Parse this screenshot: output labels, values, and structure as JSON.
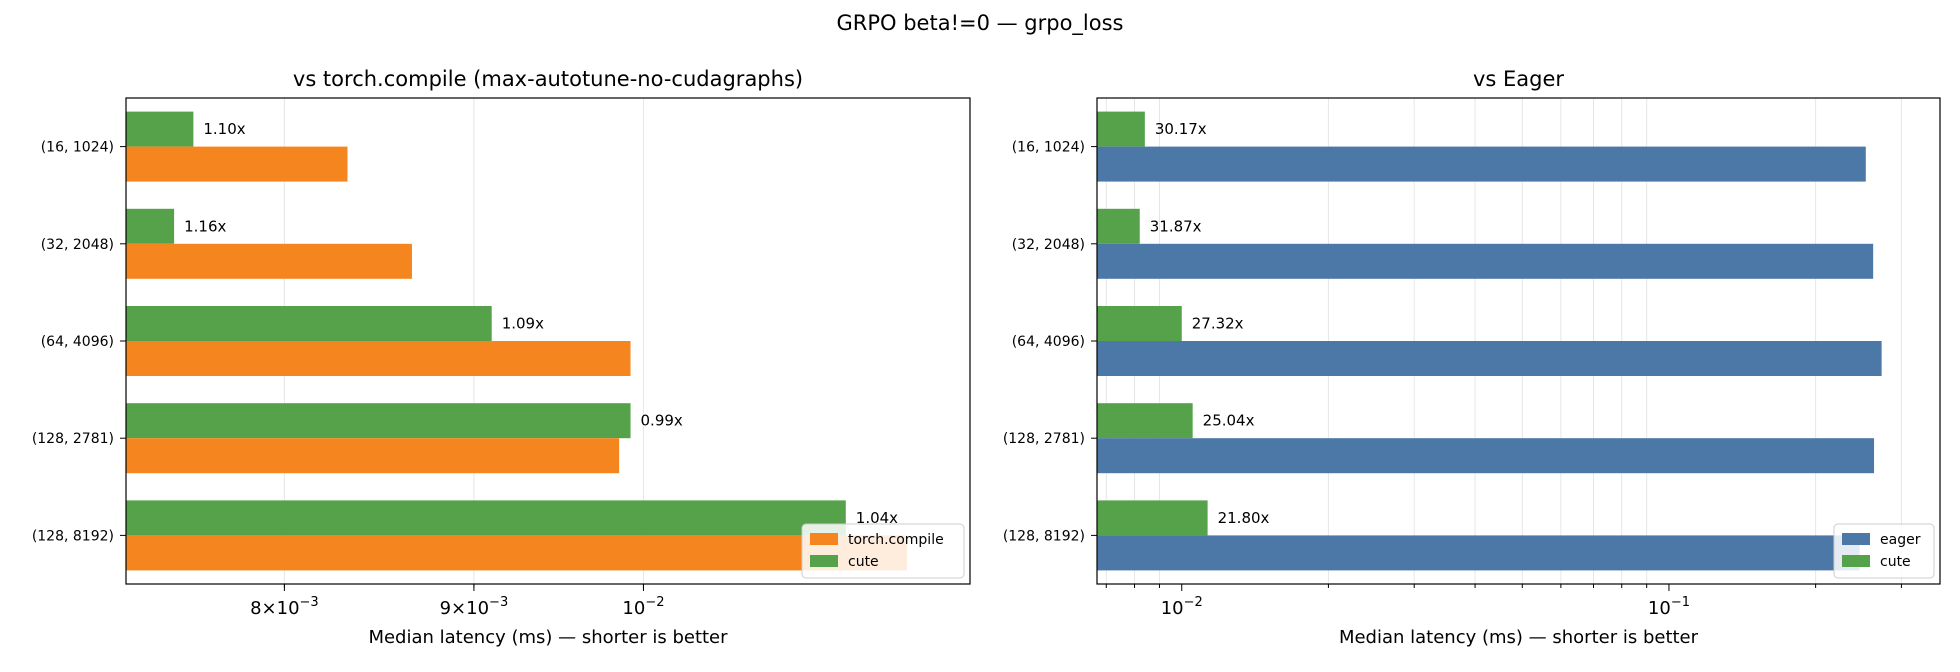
{
  "title": "GRPO beta!=0 — grpo_loss",
  "chart_data": [
    {
      "type": "bar",
      "orientation": "horizontal",
      "title": "vs torch.compile (max-autotune-no-cudagraphs)",
      "xlabel": "Median latency (ms) — shorter is better",
      "xscale": "log",
      "xlim": [
        0.00725,
        0.01225
      ],
      "xticks": [
        {
          "value": 0.008,
          "base": "8",
          "mult": "×10",
          "exp": "−3"
        },
        {
          "value": 0.009,
          "base": "9",
          "mult": "×10",
          "exp": "−3"
        },
        {
          "value": 0.01,
          "base": "10",
          "mult": "",
          "exp": "−2"
        }
      ],
      "minor_grid": [
        0.008,
        0.009,
        0.01
      ],
      "categories": [
        "(16, 1024)",
        "(32, 2048)",
        "(64, 4096)",
        "(128, 2781)",
        "(128, 8192)"
      ],
      "series": [
        {
          "name": "torch.compile",
          "color": "#f5861f",
          "values": [
            0.00832,
            0.00866,
            0.00992,
            0.00985,
            0.01178
          ]
        },
        {
          "name": "cute",
          "color": "#55a24a",
          "values": [
            0.00756,
            0.00747,
            0.0091,
            0.00992,
            0.01134
          ]
        }
      ],
      "bar_labels": [
        "1.10x",
        "1.16x",
        "1.09x",
        "0.99x",
        "1.04x"
      ],
      "legend_loc": "lower-right",
      "grid": true
    },
    {
      "type": "bar",
      "orientation": "horizontal",
      "title": "vs Eager",
      "xlabel": "Median latency (ms) — shorter is better",
      "xscale": "log",
      "xlim": [
        0.0067,
        0.36
      ],
      "xticks": [
        {
          "value": 0.01,
          "base": "10",
          "mult": "",
          "exp": "−2"
        },
        {
          "value": 0.1,
          "base": "10",
          "mult": "",
          "exp": "−1"
        }
      ],
      "minor_grid": [
        0.007,
        0.008,
        0.009,
        0.02,
        0.03,
        0.04,
        0.05,
        0.06,
        0.07,
        0.08,
        0.09,
        0.2,
        0.3
      ],
      "categories": [
        "(16, 1024)",
        "(32, 2048)",
        "(64, 4096)",
        "(128, 2781)",
        "(128, 8192)"
      ],
      "series": [
        {
          "name": "eager",
          "color": "#4c78a8",
          "values": [
            0.2535,
            0.2625,
            0.2732,
            0.2636,
            0.2463
          ]
        },
        {
          "name": "cute",
          "color": "#55a24a",
          "values": [
            0.0084,
            0.0082,
            0.01,
            0.01053,
            0.0113
          ]
        }
      ],
      "bar_labels": [
        "30.17x",
        "31.87x",
        "27.32x",
        "25.04x",
        "21.80x"
      ],
      "legend_loc": "lower-right",
      "grid": true
    }
  ]
}
